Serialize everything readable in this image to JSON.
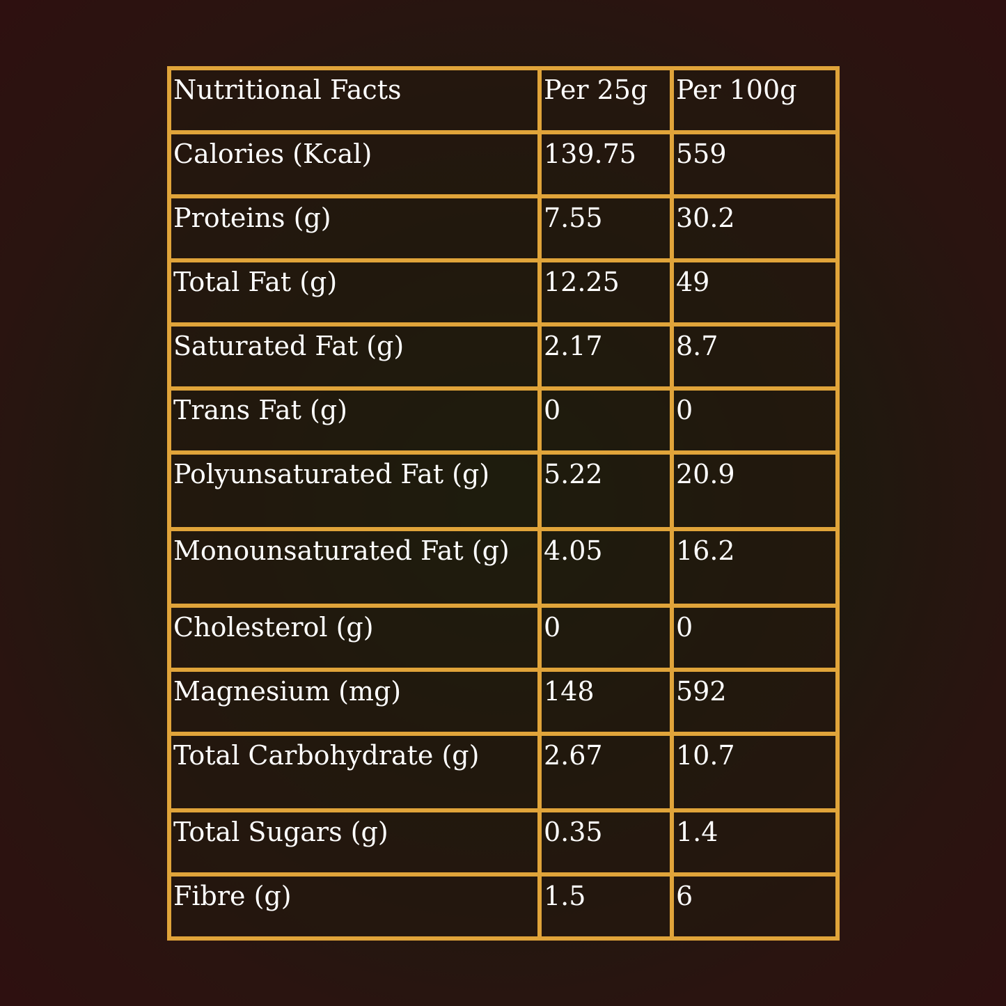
{
  "header": {
    "label": "Nutritional Facts",
    "col1": "Per 25g",
    "col2": "Per 100g"
  },
  "rows": [
    {
      "label": "Calories (Kcal)",
      "per25": "139.75",
      "per100": "559"
    },
    {
      "label": "Proteins (g)",
      "per25": "7.55",
      "per100": "30.2"
    },
    {
      "label": "Total Fat (g)",
      "per25": "12.25",
      "per100": "49"
    },
    {
      "label": "Saturated Fat (g)",
      "per25": "2.17",
      "per100": "8.7"
    },
    {
      "label": "Trans Fat (g)",
      "per25": "0",
      "per100": "0"
    },
    {
      "label": "Polyunsaturated Fat (g)",
      "per25": "5.22",
      "per100": "20.9"
    },
    {
      "label": "Monounsaturated Fat (g)",
      "per25": "4.05",
      "per100": "16.2"
    },
    {
      "label": "Cholesterol (g)",
      "per25": "0",
      "per100": "0"
    },
    {
      "label": "Magnesium (mg)",
      "per25": "148",
      "per100": "592"
    },
    {
      "label": "Total Carbohydrate (g)",
      "per25": "2.67",
      "per100": "10.7"
    },
    {
      "label": "Total Sugars (g)",
      "per25": "0.35",
      "per100": "1.4"
    },
    {
      "label": "Fibre (g)",
      "per25": "1.5",
      "per100": "6"
    }
  ],
  "colors": {
    "border": "#e0a43a",
    "text": "#ffffff"
  }
}
